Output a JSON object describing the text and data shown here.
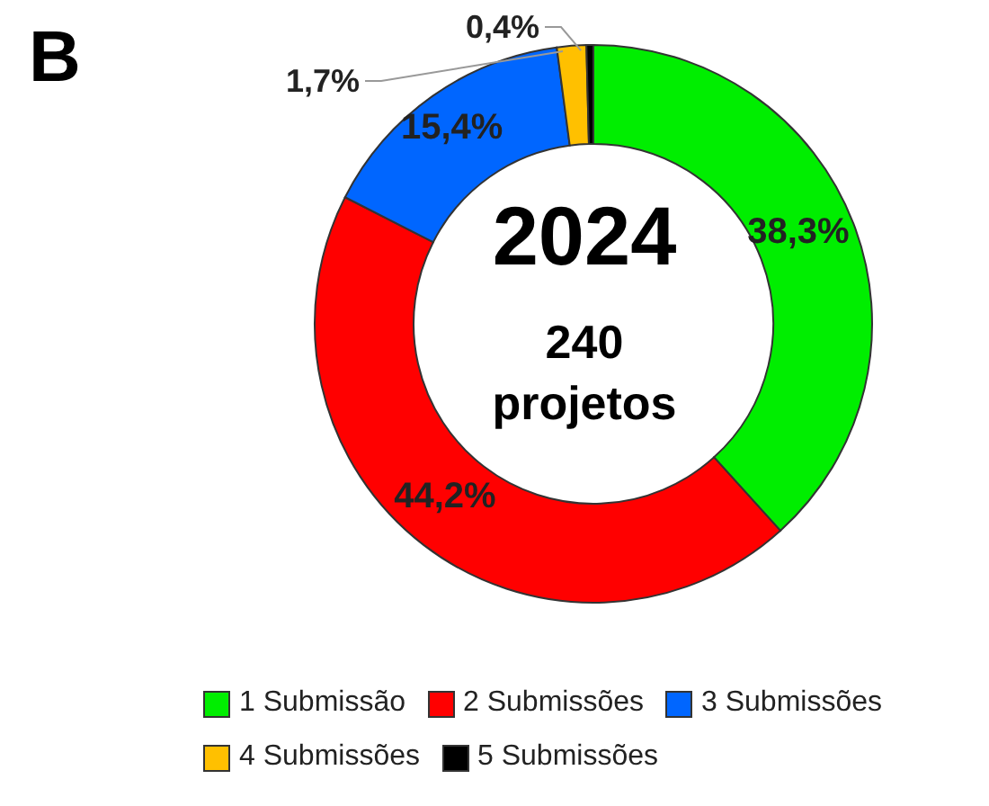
{
  "chart_data": {
    "type": "donut",
    "title": "B",
    "categories": [
      "1 Submissão",
      "2 Submissões",
      "3 Submissões",
      "4 Submissões",
      "5 Submissões"
    ],
    "values": [
      38.3,
      44.2,
      15.4,
      1.7,
      0.4
    ],
    "value_labels": [
      "38,3%",
      "44,2%",
      "15,4%",
      "1,7%",
      "0,4%"
    ],
    "colors": [
      "#00ee00",
      "#ff0000",
      "#0066ff",
      "#ffc000",
      "#000000"
    ],
    "annotations": [
      "2024",
      "240",
      "projetos"
    ],
    "legend": "bottom"
  }
}
